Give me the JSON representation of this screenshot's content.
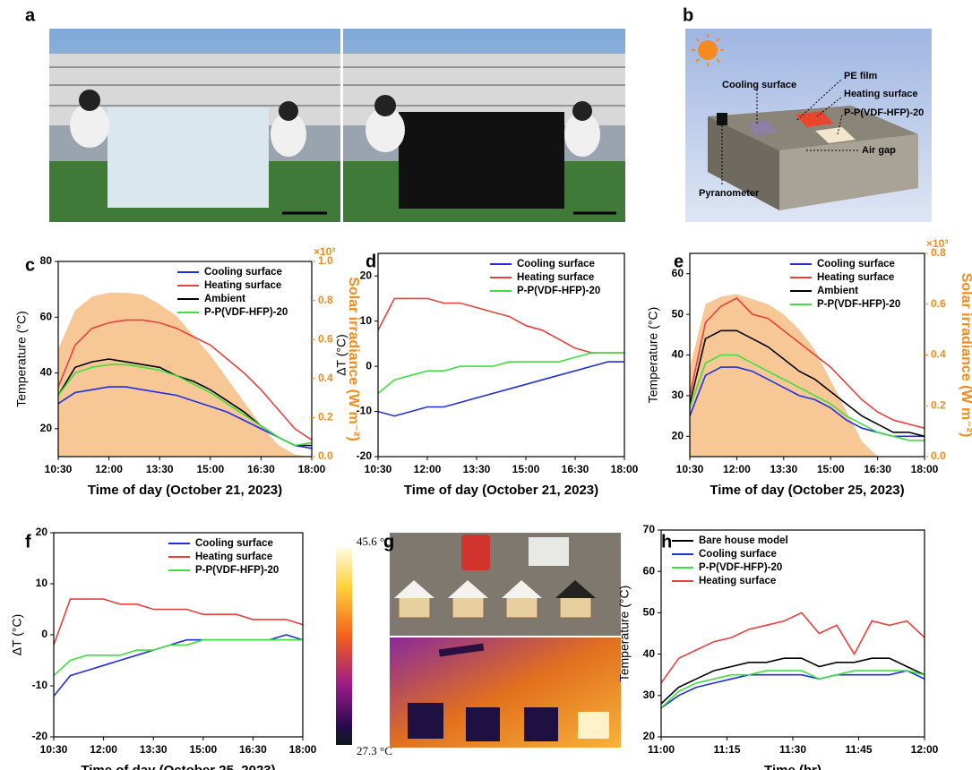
{
  "panel_labels": [
    "a",
    "b",
    "c",
    "d",
    "e",
    "f",
    "g",
    "h"
  ],
  "schematic_b": {
    "labels": [
      "Cooling surface",
      "PE film",
      "Heating surface",
      "P-P(VDF-HFP)-20",
      "Air gap",
      "Pyranometer"
    ]
  },
  "thermal_g": {
    "max_label": "45.6 °C",
    "min_label": "27.3 °C"
  },
  "chart_data": [
    {
      "type": "line",
      "ylabel": "Temperature (°C)",
      "xlabel": "Time of day (October 21, 2023)",
      "y2label": "Solar irradiance (W m⁻²)",
      "y2_multiplier": "×10³",
      "y2_color": "#f08c1e",
      "legend": "upper right",
      "x": [
        10.5,
        11,
        11.5,
        12,
        12.5,
        13,
        13.5,
        14,
        14.5,
        15,
        15.5,
        16,
        16.5,
        17,
        17.5,
        18
      ],
      "xlim": [
        10.5,
        18
      ],
      "xticks": [
        {
          "value": 10.5,
          "label": "10:30"
        },
        {
          "value": 12,
          "label": "12:00"
        },
        {
          "value": 13.5,
          "label": "13:30"
        },
        {
          "value": 15,
          "label": "15:00"
        },
        {
          "value": 16.5,
          "label": "16:30"
        },
        {
          "value": 18,
          "label": "18:00"
        }
      ],
      "ylim": [
        10,
        80
      ],
      "yticks": [
        20,
        40,
        60,
        80
      ],
      "y2lim": [
        0,
        1.0
      ],
      "y2ticks": [
        {
          "value": 0,
          "label": "0.0"
        },
        0.2,
        0.4,
        0.6,
        0.8,
        {
          "value": 1,
          "label": "1.0"
        }
      ],
      "series": [
        {
          "color": "#f7c896",
          "axis": "y2",
          "values": [
            0.55,
            0.75,
            0.82,
            0.84,
            0.84,
            0.83,
            0.78,
            0.72,
            0.62,
            0.52,
            0.4,
            0.28,
            0.16,
            0.06,
            0.01,
            0
          ]
        },
        {
          "name": "Cooling surface",
          "color": "#1f2fe0",
          "values": [
            29,
            33,
            34,
            35,
            35,
            34,
            33,
            32,
            30,
            28,
            26,
            23,
            20,
            17,
            14,
            13
          ]
        },
        {
          "name": "Heating surface",
          "color": "#e8413c",
          "values": [
            35,
            50,
            56,
            58,
            59,
            59,
            58,
            56,
            53,
            50,
            45,
            40,
            34,
            27,
            20,
            16
          ]
        },
        {
          "name": "Ambient",
          "color": "#000000",
          "values": [
            32,
            42,
            44,
            45,
            44,
            43,
            42,
            39,
            37,
            34,
            30,
            26,
            21,
            17,
            14,
            14
          ]
        },
        {
          "name": "P-P(VDF-HFP)-20",
          "color": "#3ee03e",
          "values": [
            32,
            40,
            42,
            43,
            43,
            42,
            41,
            39,
            36,
            33,
            29,
            25,
            21,
            17,
            14,
            15
          ]
        }
      ]
    },
    {
      "type": "line",
      "ylabel": "ΔT (°C)",
      "xlabel": "Time of day (October 21, 2023)",
      "legend": "upper right",
      "x": [
        10.5,
        11,
        11.5,
        12,
        12.5,
        13,
        13.5,
        14,
        14.5,
        15,
        15.5,
        16,
        16.5,
        17,
        17.5,
        18
      ],
      "xlim": [
        10.5,
        18
      ],
      "xticks": [
        {
          "value": 10.5,
          "label": "10:30"
        },
        {
          "value": 12,
          "label": "12:00"
        },
        {
          "value": 13.5,
          "label": "13:30"
        },
        {
          "value": 15,
          "label": "15:00"
        },
        {
          "value": 16.5,
          "label": "16:30"
        },
        {
          "value": 18,
          "label": "18:00"
        }
      ],
      "ylim": [
        -20,
        25
      ],
      "yticks": [
        -20,
        -10,
        0,
        10,
        20
      ],
      "series": [
        {
          "name": "Cooling surface",
          "color": "#1f2fe0",
          "values": [
            -10,
            -11,
            -10,
            -9,
            -9,
            -8,
            -7,
            -6,
            -5,
            -4,
            -3,
            -2,
            -1,
            0,
            1,
            1
          ]
        },
        {
          "name": "Heating surface",
          "color": "#e8413c",
          "values": [
            8,
            15,
            15,
            15,
            14,
            14,
            13,
            12,
            11,
            9,
            8,
            6,
            4,
            3,
            3,
            3
          ]
        },
        {
          "name": "P-P(VDF-HFP)-20",
          "color": "#3ee03e",
          "values": [
            -6,
            -3,
            -2,
            -1,
            -1,
            0,
            0,
            0,
            1,
            1,
            1,
            1,
            2,
            3,
            3,
            3
          ]
        }
      ]
    },
    {
      "type": "line",
      "ylabel": "Temperature (°C)",
      "xlabel": "Time of day (October 25, 2023)",
      "y2label": "Solar irradiance (W m⁻²)",
      "y2_multiplier": "×10³",
      "y2_color": "#f08c1e",
      "legend": "upper right",
      "x": [
        10.5,
        11,
        11.5,
        12,
        12.5,
        13,
        13.5,
        14,
        14.5,
        15,
        15.5,
        16,
        16.5,
        17,
        17.5,
        18
      ],
      "xlim": [
        10.5,
        18
      ],
      "xticks": [
        {
          "value": 10.5,
          "label": "10:30"
        },
        {
          "value": 12,
          "label": "12:00"
        },
        {
          "value": 13.5,
          "label": "13:30"
        },
        {
          "value": 15,
          "label": "15:00"
        },
        {
          "value": 16.5,
          "label": "16:30"
        },
        {
          "value": 18,
          "label": "18:00"
        }
      ],
      "ylim": [
        15,
        65
      ],
      "yticks": [
        20,
        30,
        40,
        50,
        60
      ],
      "y2lim": [
        0,
        0.8
      ],
      "y2ticks": [
        {
          "value": 0,
          "label": "0.0"
        },
        0.2,
        0.4,
        0.6,
        0.8
      ],
      "series": [
        {
          "color": "#f7c896",
          "axis": "y2",
          "values": [
            0.35,
            0.6,
            0.63,
            0.64,
            0.62,
            0.6,
            0.56,
            0.5,
            0.42,
            0.3,
            0.18,
            0.06,
            0,
            0,
            0,
            0
          ]
        },
        {
          "name": "Cooling surface",
          "color": "#1f2fe0",
          "values": [
            25,
            35,
            37,
            37,
            36,
            34,
            32,
            30,
            29,
            27,
            24,
            22,
            21,
            20,
            20,
            20
          ]
        },
        {
          "name": "Heating surface",
          "color": "#e8413c",
          "values": [
            30,
            48,
            52,
            54,
            50,
            49,
            46,
            43,
            40,
            37,
            33,
            29,
            26,
            24,
            23,
            22
          ]
        },
        {
          "name": "Ambient",
          "color": "#000000",
          "values": [
            28,
            44,
            46,
            46,
            44,
            42,
            39,
            36,
            34,
            31,
            28,
            25,
            23,
            21,
            21,
            20
          ]
        },
        {
          "name": "P-P(VDF-HFP)-20",
          "color": "#3ee03e",
          "values": [
            27,
            38,
            40,
            40,
            38,
            36,
            34,
            32,
            30,
            28,
            25,
            23,
            21,
            20,
            19,
            19
          ]
        }
      ]
    },
    {
      "type": "line",
      "ylabel": "ΔT (°C)",
      "xlabel": "Time of day (October 25, 2023)",
      "legend": "upper right",
      "x": [
        10.5,
        11,
        11.5,
        12,
        12.5,
        13,
        13.5,
        14,
        14.5,
        15,
        15.5,
        16,
        16.5,
        17,
        17.5,
        18
      ],
      "xlim": [
        10.5,
        18
      ],
      "xticks": [
        {
          "value": 10.5,
          "label": "10:30"
        },
        {
          "value": 12,
          "label": "12:00"
        },
        {
          "value": 13.5,
          "label": "13:30"
        },
        {
          "value": 15,
          "label": "15:00"
        },
        {
          "value": 16.5,
          "label": "16:30"
        },
        {
          "value": 18,
          "label": "18:00"
        }
      ],
      "ylim": [
        -20,
        20
      ],
      "yticks": [
        -20,
        -10,
        0,
        10,
        20
      ],
      "series": [
        {
          "name": "Cooling surface",
          "color": "#1f2fe0",
          "values": [
            -12,
            -8,
            -7,
            -6,
            -5,
            -4,
            -3,
            -2,
            -1,
            -1,
            -1,
            -1,
            -1,
            -1,
            0,
            -1
          ]
        },
        {
          "name": "Heating surface",
          "color": "#e8413c",
          "values": [
            -2,
            7,
            7,
            7,
            6,
            6,
            5,
            5,
            5,
            4,
            4,
            4,
            3,
            3,
            3,
            2
          ]
        },
        {
          "name": "P-P(VDF-HFP)-20",
          "color": "#3ee03e",
          "values": [
            -8,
            -5,
            -4,
            -4,
            -4,
            -3,
            -3,
            -2,
            -2,
            -1,
            -1,
            -1,
            -1,
            -1,
            -1,
            -1
          ]
        }
      ]
    },
    {
      "type": "line",
      "ylabel": "Temperature (°C)",
      "xlabel": "Time (hr)",
      "legend": "upper left",
      "x": [
        0,
        4,
        8,
        12,
        16,
        20,
        24,
        28,
        32,
        36,
        40,
        44,
        48,
        52,
        56,
        60
      ],
      "xlim": [
        0,
        60
      ],
      "xticks": [
        {
          "value": 0,
          "label": "11:00"
        },
        {
          "value": 15,
          "label": "11:15"
        },
        {
          "value": 30,
          "label": "11:30"
        },
        {
          "value": 45,
          "label": "11:45"
        },
        {
          "value": 60,
          "label": "12:00"
        }
      ],
      "ylim": [
        20,
        70
      ],
      "yticks": [
        20,
        30,
        40,
        50,
        60,
        70
      ],
      "series": [
        {
          "name": "Bare house model",
          "color": "#000000",
          "values": [
            28,
            32,
            34,
            36,
            37,
            38,
            38,
            39,
            39,
            37,
            38,
            38,
            39,
            39,
            37,
            35
          ]
        },
        {
          "name": "Cooling surface",
          "color": "#1f2fe0",
          "values": [
            27,
            30,
            32,
            33,
            34,
            35,
            35,
            35,
            35,
            34,
            35,
            35,
            35,
            35,
            36,
            34
          ]
        },
        {
          "name": "P-P(VDF-HFP)-20",
          "color": "#3ee03e",
          "values": [
            27,
            31,
            33,
            34,
            35,
            35,
            36,
            36,
            36,
            34,
            35,
            36,
            36,
            36,
            36,
            35
          ]
        },
        {
          "name": "Heating surface",
          "color": "#e8413c",
          "values": [
            33,
            39,
            41,
            43,
            44,
            46,
            47,
            48,
            50,
            45,
            47,
            40,
            48,
            47,
            48,
            44
          ]
        }
      ]
    }
  ]
}
